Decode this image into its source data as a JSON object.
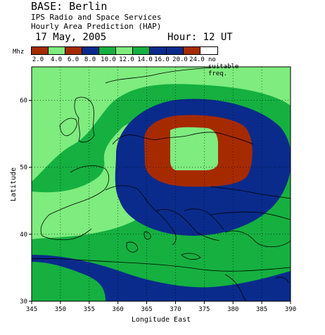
{
  "header": {
    "base": "BASE: Berlin",
    "organisation": "IPS Radio and Space Services",
    "product": "Hourly Area Prediction (HAP)",
    "date": "17 May, 2005",
    "hour": "Hour: 12 UT"
  },
  "legend": {
    "unit": "Mhz",
    "bins": [
      {
        "label": "2.0",
        "color": "#a62a00"
      },
      {
        "label": "4.0",
        "color": "#7eec7e"
      },
      {
        "label": "6.0",
        "color": "#a62a00"
      },
      {
        "label": "8.0",
        "color": "#0a2b8c"
      },
      {
        "label": "10.0",
        "color": "#15b040"
      },
      {
        "label": "12.0",
        "color": "#7eec7e"
      },
      {
        "label": "14.0",
        "color": "#15b040"
      },
      {
        "label": "16.0",
        "color": "#0a2b8c"
      },
      {
        "label": "20.0",
        "color": "#0a2b8c"
      },
      {
        "label": "24.0",
        "color": "#a62a00"
      },
      {
        "label": "no suitable freq.",
        "color": "#ffffff"
      }
    ]
  },
  "map": {
    "x_axis_title": "Longitude East",
    "y_axis_title": "Latitude",
    "x_ticks": [
      "345",
      "350",
      "355",
      "360",
      "365",
      "370",
      "375",
      "380",
      "385",
      "390"
    ],
    "y_ticks": [
      "30",
      "40",
      "50",
      "60"
    ],
    "x_range": [
      345,
      390
    ],
    "y_range": [
      30,
      65
    ],
    "grid": true,
    "colors": {
      "light_green": "#7eec7e",
      "green": "#15b040",
      "blue": "#0a2b8c",
      "red": "#a62a00",
      "coast": "#000000"
    }
  }
}
